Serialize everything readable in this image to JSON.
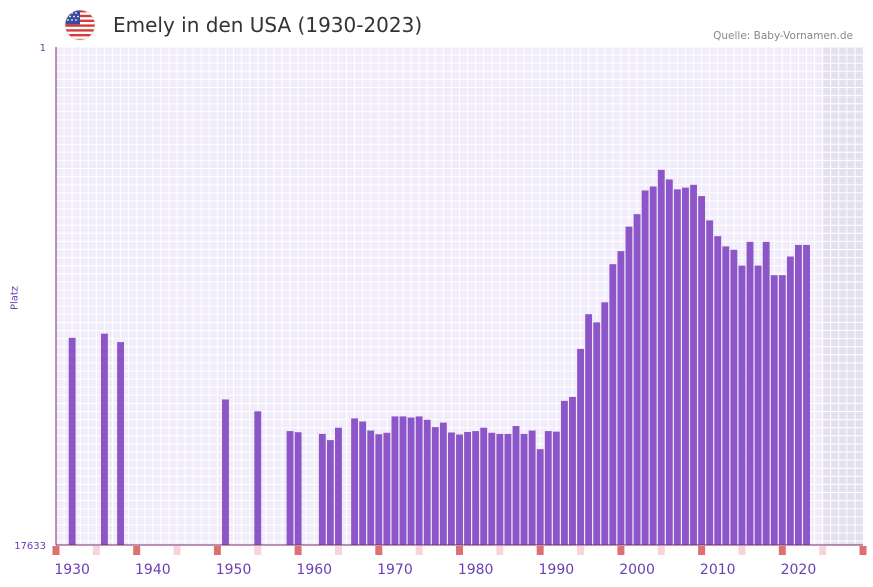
{
  "header": {
    "title": "Emely in den USA (1930-2023)",
    "source": "Quelle: Baby-Vornamen.de",
    "flag_icon": "usa-flag-icon"
  },
  "colors": {
    "bar": "#8c55c8",
    "plot_bg": "#f1ecfa",
    "future_bg": "#e4e0ee",
    "grid": "#ffffff",
    "axis": "#7a2a6a",
    "label": "#6a3fb5",
    "marker_strong": "#e07070",
    "marker_light": "#f7d4d8"
  },
  "chart_data": {
    "type": "bar",
    "title": "Emely in den USA (1930-2023)",
    "ylabel": "Platz",
    "y_axis_reversed": true,
    "y_ticks": [
      "1",
      "17633"
    ],
    "ylim": [
      1,
      17633
    ],
    "xlim": [
      1928,
      2028
    ],
    "x_ticks": [
      1930,
      1940,
      1950,
      1960,
      1970,
      1980,
      1990,
      2000,
      2010,
      2020
    ],
    "future_shade_from": 2023,
    "series": [
      {
        "name": "Platz",
        "x": [
          1930,
          1934,
          1936,
          1949,
          1953,
          1957,
          1958,
          1961,
          1962,
          1963,
          1965,
          1966,
          1967,
          1968,
          1969,
          1970,
          1971,
          1972,
          1973,
          1974,
          1975,
          1976,
          1977,
          1978,
          1979,
          1980,
          1981,
          1982,
          1983,
          1984,
          1985,
          1986,
          1987,
          1988,
          1989,
          1990,
          1991,
          1992,
          1993,
          1994,
          1995,
          1996,
          1997,
          1998,
          1999,
          2000,
          2001,
          2002,
          2003,
          2004,
          2005,
          2006,
          2007,
          2008,
          2009,
          2010,
          2011,
          2012,
          2013,
          2014,
          2015,
          2016,
          2017,
          2018,
          2019,
          2020,
          2021
        ],
        "values": [
          10300,
          10150,
          10450,
          12480,
          12900,
          13600,
          13640,
          13700,
          13920,
          13480,
          13150,
          13260,
          13580,
          13710,
          13660,
          13080,
          13080,
          13120,
          13080,
          13200,
          13460,
          13300,
          13650,
          13720,
          13630,
          13600,
          13480,
          13660,
          13700,
          13700,
          13420,
          13700,
          13580,
          14240,
          13600,
          13620,
          12530,
          12390,
          10690,
          9460,
          9750,
          9040,
          7690,
          7230,
          6360,
          5920,
          5080,
          4940,
          4350,
          4690,
          5040,
          4980,
          4880,
          5280,
          6140,
          6700,
          7060,
          7180,
          7740,
          6900,
          7740,
          6900,
          8080,
          8080,
          7420,
          7010,
          7010
        ]
      }
    ],
    "marker_years_strong": [
      1928,
      1938,
      1948,
      1958,
      1968,
      1978,
      1988,
      1998,
      2008,
      2018,
      2028
    ],
    "marker_years_light": [
      1933,
      1943,
      1953,
      1963,
      1973,
      1983,
      1993,
      2003,
      2013,
      2023
    ]
  }
}
